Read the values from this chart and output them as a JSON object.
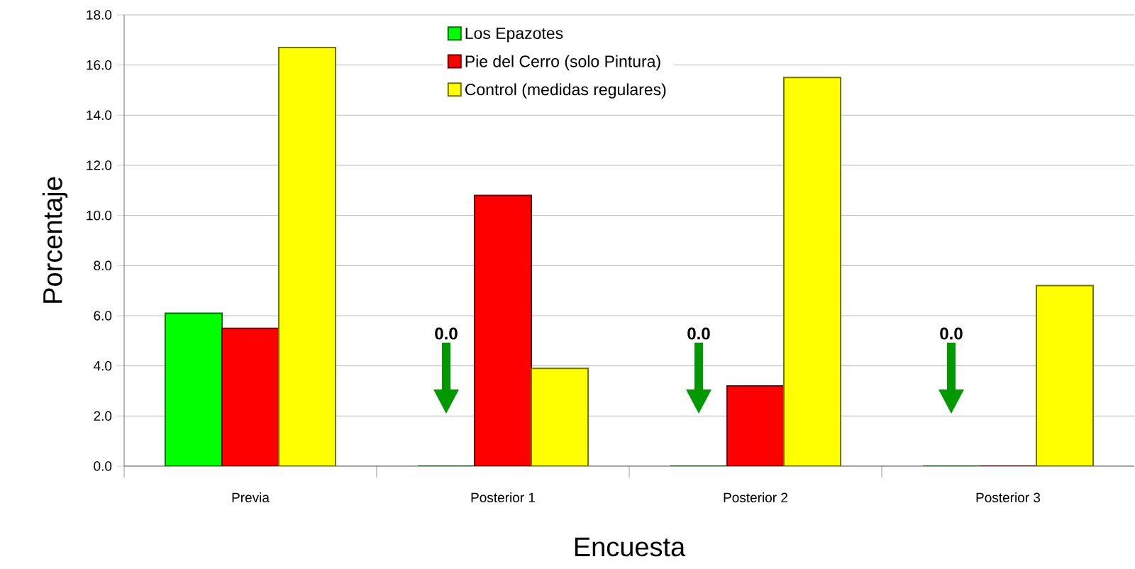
{
  "chart_data": {
    "type": "bar",
    "xlabel": "Encuesta",
    "ylabel": "Porcentaje",
    "categories": [
      "Previa",
      "Posterior 1",
      "Posterior 2",
      "Posterior 3"
    ],
    "series": [
      {
        "name": "Los Epazotes",
        "color": "#00ff00",
        "values": [
          6.1,
          0,
          0,
          0
        ]
      },
      {
        "name": "Pie del Cerro (solo Pintura)",
        "color": "#ff0000",
        "values": [
          5.5,
          10.8,
          3.2,
          0
        ]
      },
      {
        "name": "Control (medidas regulares)",
        "color": "#ffff00",
        "values": [
          16.7,
          3.9,
          15.5,
          7.2
        ]
      }
    ],
    "ylim": [
      0,
      18
    ],
    "yticks": [
      {
        "value": 0,
        "label": "0.0"
      },
      {
        "value": 2,
        "label": "2.0"
      },
      {
        "value": 4,
        "label": "4.0"
      },
      {
        "value": 6,
        "label": "6.0"
      },
      {
        "value": 8,
        "label": "8.0"
      },
      {
        "value": 10,
        "label": "10.0"
      },
      {
        "value": 12,
        "label": "12.0"
      },
      {
        "value": 14,
        "label": "14.0"
      },
      {
        "value": 16,
        "label": "16.0"
      },
      {
        "value": 18,
        "label": "18.0"
      }
    ],
    "grid": "y",
    "legend": "top",
    "annotations": [
      "0.0",
      "0.0",
      "0.0"
    ]
  }
}
